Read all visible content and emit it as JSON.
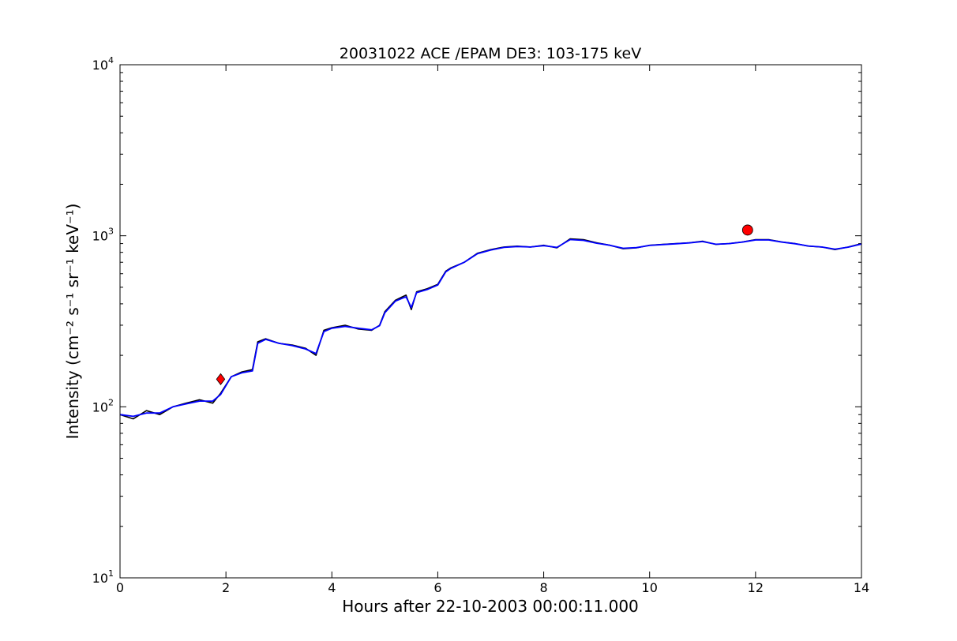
{
  "chart_data": {
    "type": "line",
    "title": "20031022 ACE /EPAM DE3: 103-175 keV",
    "xlabel": "Hours after 22-10-2003 00:00:11.000",
    "ylabel": "Intensity (cm⁻² s⁻¹ sr⁻¹ keV⁻¹)",
    "xlim": [
      0,
      14
    ],
    "ylim": [
      10,
      10000
    ],
    "yscale": "log",
    "grid": false,
    "x_ticks": [
      "0",
      "2",
      "4",
      "6",
      "8",
      "10",
      "12",
      "14"
    ],
    "y_ticks": [
      {
        "base": "10",
        "exp": "1"
      },
      {
        "base": "10",
        "exp": "2"
      },
      {
        "base": "10",
        "exp": "3"
      },
      {
        "base": "10",
        "exp": "4"
      }
    ],
    "series": [
      {
        "color": "#000000",
        "x": [
          0,
          0.25,
          0.5,
          0.75,
          1.0,
          1.25,
          1.5,
          1.75,
          1.9,
          2.1,
          2.3,
          2.5,
          2.6,
          2.75,
          3.0,
          3.25,
          3.5,
          3.7,
          3.85,
          4.0,
          4.25,
          4.5,
          4.75,
          4.9,
          5.0,
          5.2,
          5.4,
          5.5,
          5.6,
          5.8,
          6.0,
          6.15,
          6.25,
          6.5,
          6.75,
          7.0,
          7.25,
          7.5,
          7.75,
          8.0,
          8.25,
          8.5,
          8.75,
          9.0,
          9.25,
          9.5,
          9.75,
          10.0,
          10.25,
          10.5,
          10.75,
          11.0,
          11.25,
          11.5,
          11.75,
          12.0,
          12.25,
          12.5,
          12.75,
          13.0,
          13.25,
          13.5,
          13.75,
          14.0
        ],
        "y": [
          90,
          85,
          95,
          90,
          100,
          105,
          110,
          105,
          120,
          150,
          160,
          165,
          240,
          250,
          235,
          230,
          220,
          200,
          280,
          290,
          300,
          285,
          280,
          300,
          360,
          420,
          450,
          370,
          470,
          490,
          520,
          620,
          650,
          700,
          790,
          830,
          860,
          870,
          860,
          880,
          850,
          960,
          950,
          910,
          880,
          840,
          850,
          880,
          890,
          900,
          910,
          930,
          890,
          900,
          920,
          950,
          950,
          920,
          900,
          870,
          860,
          830,
          860,
          900
        ]
      },
      {
        "color": "#0000ff",
        "x": [
          0,
          0.25,
          0.5,
          0.75,
          1.0,
          1.25,
          1.5,
          1.75,
          1.9,
          2.1,
          2.3,
          2.5,
          2.6,
          2.75,
          3.0,
          3.25,
          3.5,
          3.7,
          3.85,
          4.0,
          4.25,
          4.5,
          4.75,
          4.9,
          5.0,
          5.2,
          5.4,
          5.5,
          5.6,
          5.8,
          6.0,
          6.15,
          6.25,
          6.5,
          6.75,
          7.0,
          7.25,
          7.5,
          7.75,
          8.0,
          8.25,
          8.5,
          8.75,
          9.0,
          9.25,
          9.5,
          9.75,
          10.0,
          10.25,
          10.5,
          10.75,
          11.0,
          11.25,
          11.5,
          11.75,
          12.0,
          12.25,
          12.5,
          12.75,
          13.0,
          13.25,
          13.5,
          13.75,
          14.0
        ],
        "y": [
          90,
          88,
          92,
          92,
          100,
          104,
          108,
          108,
          118,
          150,
          158,
          162,
          235,
          248,
          235,
          228,
          218,
          205,
          275,
          288,
          295,
          288,
          282,
          298,
          355,
          415,
          440,
          380,
          465,
          485,
          515,
          615,
          645,
          700,
          785,
          825,
          855,
          865,
          860,
          875,
          855,
          950,
          940,
          905,
          880,
          845,
          852,
          878,
          888,
          898,
          908,
          925,
          892,
          900,
          918,
          945,
          945,
          918,
          898,
          872,
          860,
          835,
          858,
          895
        ]
      }
    ],
    "markers": [
      {
        "shape": "diamond",
        "x": 1.9,
        "y": 145,
        "color": "#ff0000"
      },
      {
        "shape": "circle",
        "x": 11.85,
        "y": 1080,
        "color": "#ff0000"
      }
    ]
  }
}
